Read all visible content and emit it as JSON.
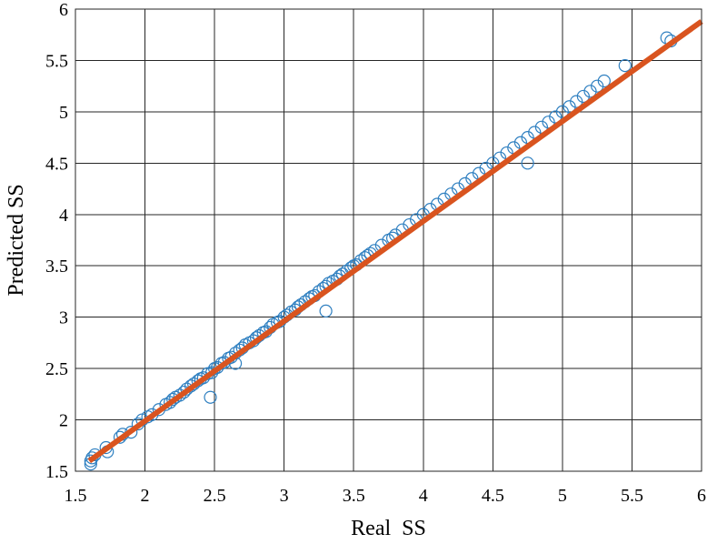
{
  "chart_data": {
    "type": "scatter",
    "title": "",
    "xlabel": "Real  SS",
    "ylabel": "Predicted SS",
    "xlim": [
      1.5,
      6
    ],
    "ylim": [
      1.5,
      6
    ],
    "xticks": [
      "1.5",
      "2",
      "2.5",
      "3",
      "3.5",
      "4",
      "4.5",
      "5",
      "5.5",
      "6"
    ],
    "yticks": [
      "1.5",
      "2",
      "2.5",
      "3",
      "3.5",
      "4",
      "4.5",
      "5",
      "5.5",
      "6"
    ],
    "grid": true,
    "legend": "none",
    "colors": {
      "points": "#2e7fc0",
      "fit_line": "#d9541f"
    },
    "series": [
      {
        "kind": "scatter",
        "marker": "circle-open",
        "points": [
          [
            1.61,
            1.57
          ],
          [
            1.61,
            1.6
          ],
          [
            1.62,
            1.63
          ],
          [
            1.64,
            1.66
          ],
          [
            1.72,
            1.73
          ],
          [
            1.73,
            1.69
          ],
          [
            1.82,
            1.83
          ],
          [
            1.84,
            1.86
          ],
          [
            1.9,
            1.88
          ],
          [
            1.95,
            1.96
          ],
          [
            1.98,
            2.0
          ],
          [
            2.02,
            2.03
          ],
          [
            2.05,
            2.05
          ],
          [
            2.1,
            2.1
          ],
          [
            2.15,
            2.15
          ],
          [
            2.18,
            2.17
          ],
          [
            2.2,
            2.2
          ],
          [
            2.22,
            2.22
          ],
          [
            2.25,
            2.24
          ],
          [
            2.28,
            2.27
          ],
          [
            2.3,
            2.3
          ],
          [
            2.33,
            2.33
          ],
          [
            2.35,
            2.35
          ],
          [
            2.38,
            2.38
          ],
          [
            2.4,
            2.4
          ],
          [
            2.42,
            2.41
          ],
          [
            2.45,
            2.45
          ],
          [
            2.47,
            2.22
          ],
          [
            2.48,
            2.46
          ],
          [
            2.5,
            2.5
          ],
          [
            2.52,
            2.51
          ],
          [
            2.55,
            2.55
          ],
          [
            2.57,
            2.56
          ],
          [
            2.6,
            2.6
          ],
          [
            2.62,
            2.61
          ],
          [
            2.65,
            2.55
          ],
          [
            2.65,
            2.65
          ],
          [
            2.68,
            2.68
          ],
          [
            2.7,
            2.7
          ],
          [
            2.72,
            2.73
          ],
          [
            2.75,
            2.75
          ],
          [
            2.78,
            2.77
          ],
          [
            2.8,
            2.8
          ],
          [
            2.82,
            2.82
          ],
          [
            2.85,
            2.85
          ],
          [
            2.87,
            2.86
          ],
          [
            2.9,
            2.9
          ],
          [
            2.92,
            2.93
          ],
          [
            2.95,
            2.95
          ],
          [
            2.97,
            2.96
          ],
          [
            3.0,
            3.0
          ],
          [
            3.02,
            3.02
          ],
          [
            3.05,
            3.05
          ],
          [
            3.08,
            3.07
          ],
          [
            3.1,
            3.1
          ],
          [
            3.12,
            3.12
          ],
          [
            3.15,
            3.15
          ],
          [
            3.18,
            3.18
          ],
          [
            3.2,
            3.2
          ],
          [
            3.22,
            3.21
          ],
          [
            3.25,
            3.25
          ],
          [
            3.28,
            3.28
          ],
          [
            3.3,
            3.06
          ],
          [
            3.3,
            3.3
          ],
          [
            3.32,
            3.33
          ],
          [
            3.35,
            3.35
          ],
          [
            3.38,
            3.37
          ],
          [
            3.4,
            3.4
          ],
          [
            3.42,
            3.42
          ],
          [
            3.45,
            3.45
          ],
          [
            3.48,
            3.48
          ],
          [
            3.5,
            3.5
          ],
          [
            3.52,
            3.51
          ],
          [
            3.55,
            3.55
          ],
          [
            3.58,
            3.58
          ],
          [
            3.6,
            3.6
          ],
          [
            3.62,
            3.62
          ],
          [
            3.65,
            3.65
          ],
          [
            3.7,
            3.7
          ],
          [
            3.75,
            3.75
          ],
          [
            3.78,
            3.77
          ],
          [
            3.8,
            3.8
          ],
          [
            3.85,
            3.85
          ],
          [
            3.9,
            3.9
          ],
          [
            3.95,
            3.95
          ],
          [
            4.0,
            4.0
          ],
          [
            4.05,
            4.05
          ],
          [
            4.1,
            4.1
          ],
          [
            4.15,
            4.15
          ],
          [
            4.2,
            4.2
          ],
          [
            4.25,
            4.25
          ],
          [
            4.3,
            4.3
          ],
          [
            4.35,
            4.35
          ],
          [
            4.4,
            4.4
          ],
          [
            4.45,
            4.45
          ],
          [
            4.5,
            4.5
          ],
          [
            4.55,
            4.55
          ],
          [
            4.6,
            4.6
          ],
          [
            4.65,
            4.65
          ],
          [
            4.7,
            4.7
          ],
          [
            4.75,
            4.5
          ],
          [
            4.75,
            4.75
          ],
          [
            4.8,
            4.8
          ],
          [
            4.85,
            4.85
          ],
          [
            4.9,
            4.9
          ],
          [
            4.95,
            4.95
          ],
          [
            5.0,
            5.0
          ],
          [
            5.05,
            5.05
          ],
          [
            5.1,
            5.1
          ],
          [
            5.15,
            5.15
          ],
          [
            5.2,
            5.2
          ],
          [
            5.25,
            5.25
          ],
          [
            5.3,
            5.3
          ],
          [
            5.45,
            5.45
          ],
          [
            5.75,
            5.72
          ],
          [
            5.78,
            5.69
          ]
        ]
      },
      {
        "kind": "line",
        "points": [
          [
            1.6,
            1.6
          ],
          [
            6.0,
            5.88
          ]
        ]
      }
    ]
  }
}
